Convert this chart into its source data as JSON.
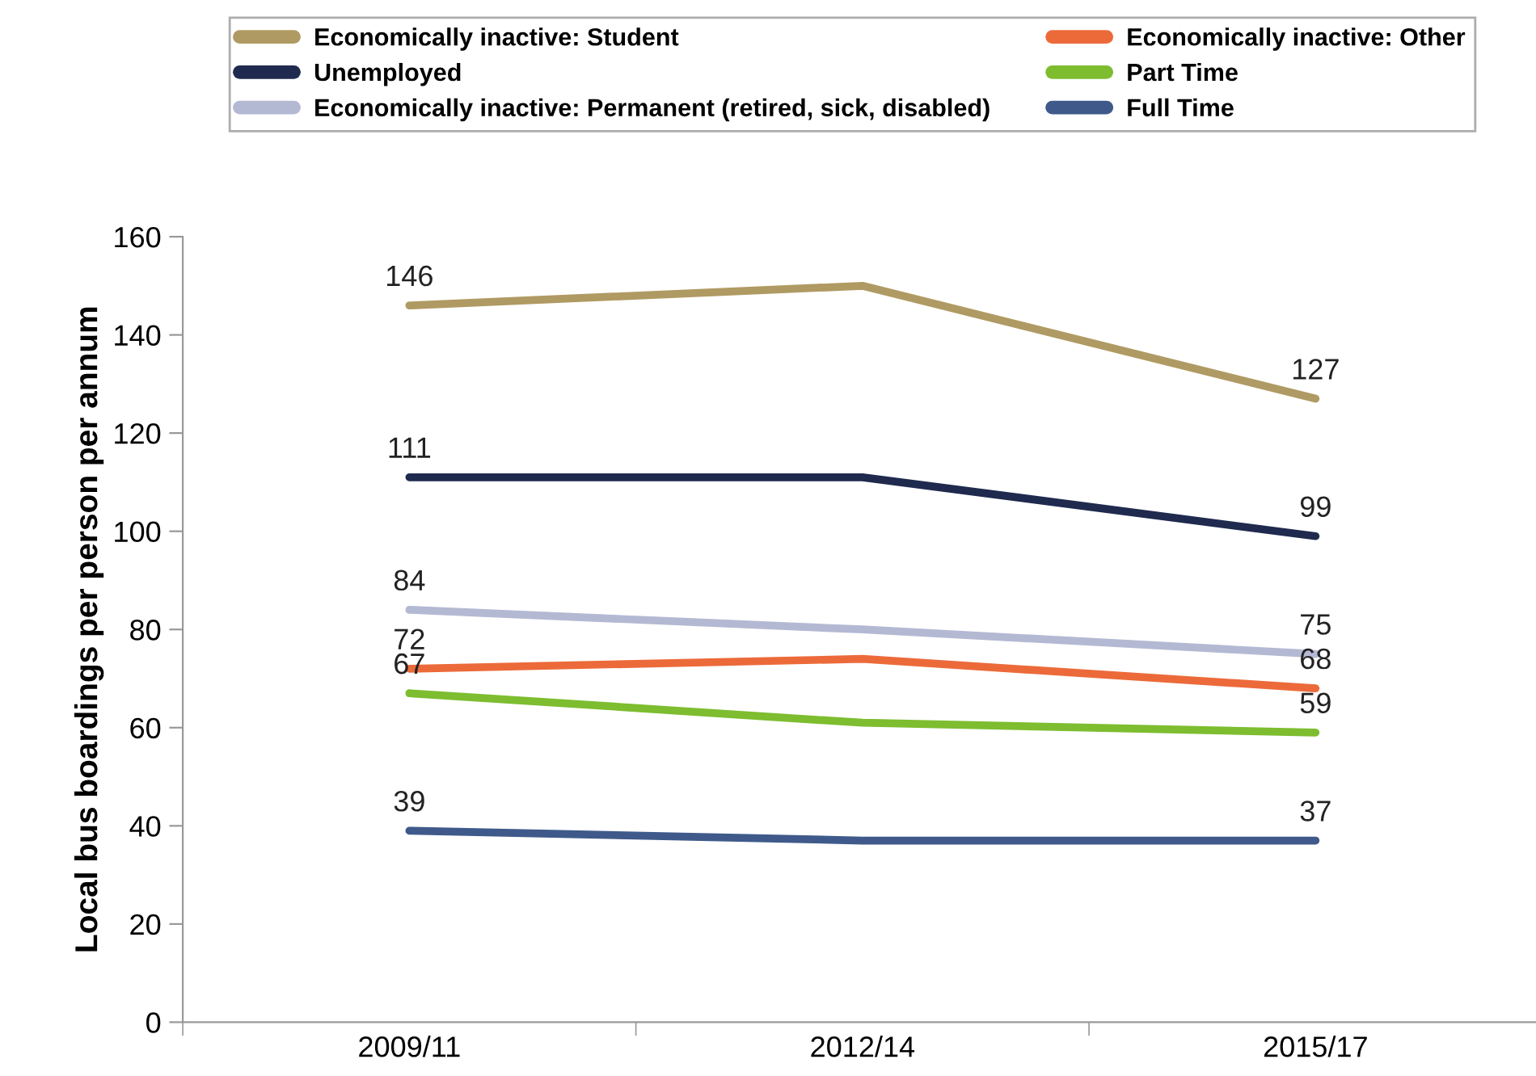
{
  "chart_data": {
    "type": "line",
    "ylabel": "Local bus boardings per person per annum",
    "categories": [
      "2009/11",
      "2012/14",
      "2015/17"
    ],
    "ylim": [
      0,
      160
    ],
    "yticks": [
      0,
      20,
      40,
      60,
      80,
      100,
      120,
      140,
      160
    ],
    "grid": false,
    "legend": "top",
    "marker": "none",
    "line_style": "solid",
    "series": [
      {
        "name": "Economically inactive: Student",
        "color": "#b09a63",
        "values": [
          146,
          150,
          127
        ],
        "value_labels": [
          "146",
          null,
          "127"
        ]
      },
      {
        "name": "Unemployed",
        "color": "#1f2a4e",
        "values": [
          111,
          111,
          99
        ],
        "value_labels": [
          "111",
          null,
          "99"
        ]
      },
      {
        "name": "Economically inactive: Permanent (retired, sick, disabled)",
        "color": "#b4b9d3",
        "values": [
          84,
          80,
          75
        ],
        "value_labels": [
          "84",
          null,
          "75"
        ]
      },
      {
        "name": "Economically inactive: Other",
        "color": "#ec6a3a",
        "values": [
          72,
          74,
          68
        ],
        "value_labels": [
          "72",
          null,
          "68"
        ]
      },
      {
        "name": "Part Time",
        "color": "#7dbd2f",
        "values": [
          67,
          61,
          59
        ],
        "value_labels": [
          "67",
          null,
          "59"
        ]
      },
      {
        "name": "Full Time",
        "color": "#3f5a8a",
        "values": [
          39,
          37,
          37
        ],
        "value_labels": [
          "39",
          null,
          "37"
        ]
      }
    ]
  }
}
